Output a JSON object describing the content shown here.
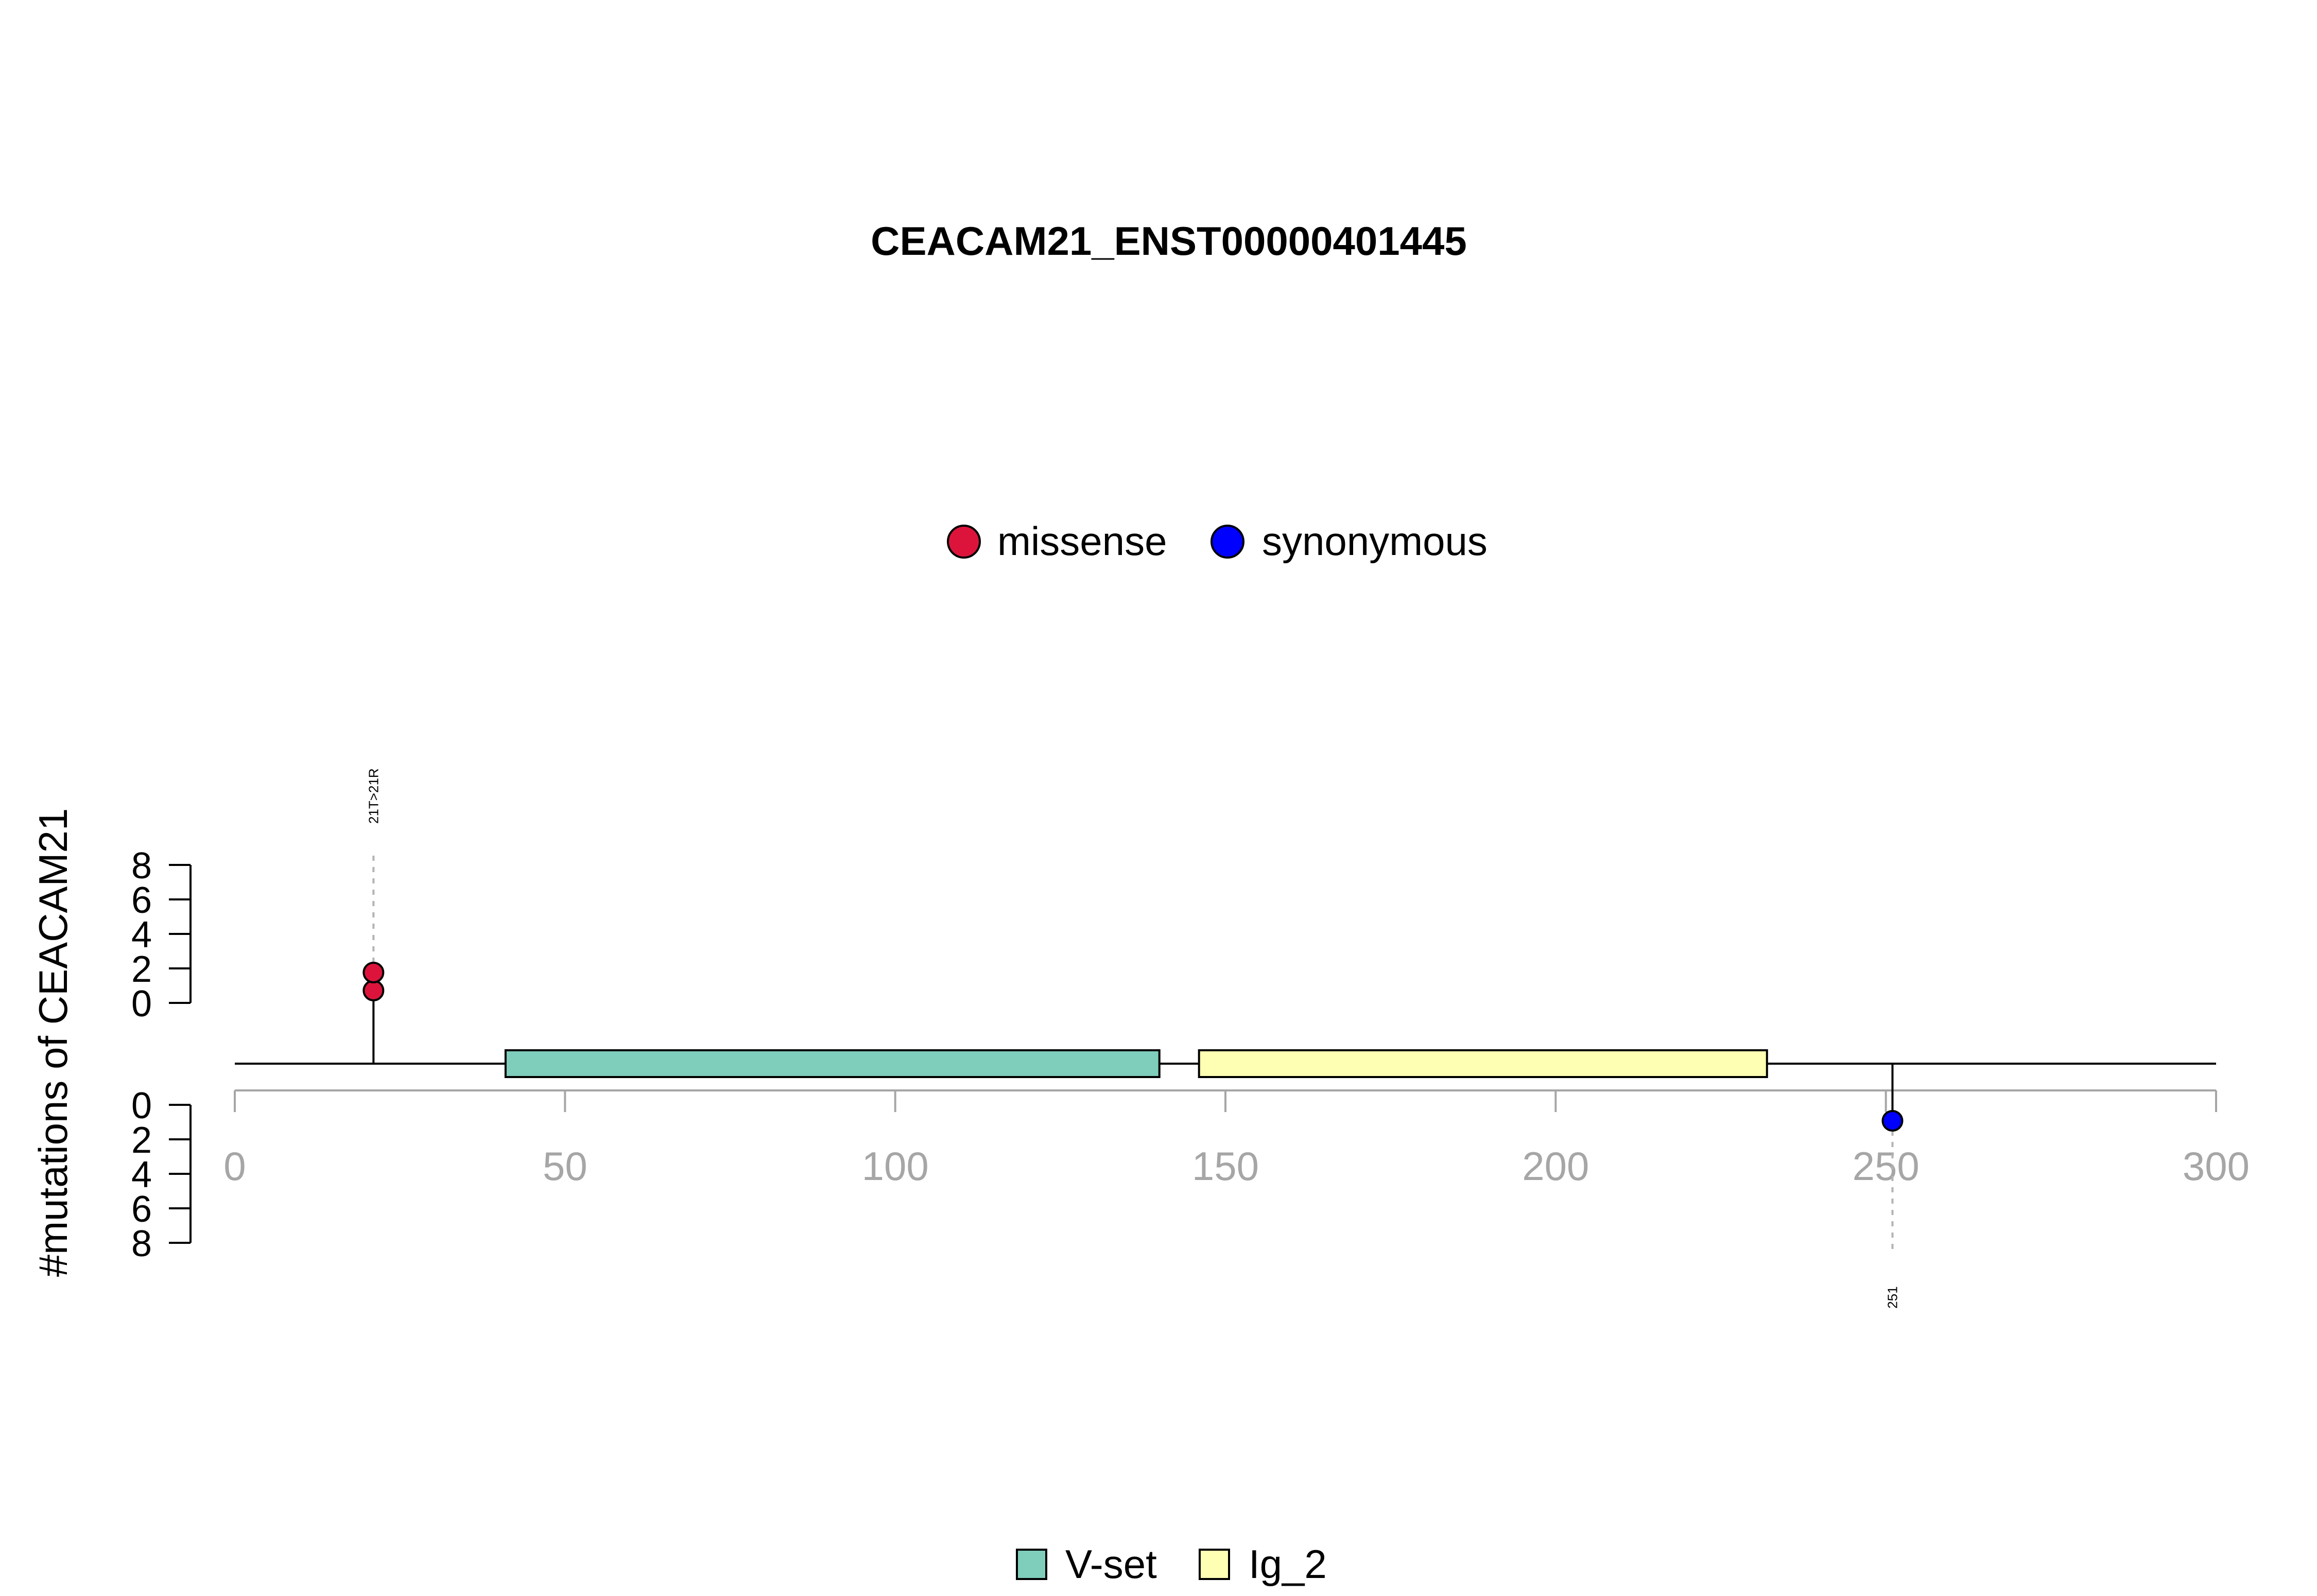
{
  "chart_data": {
    "type": "lollipop",
    "title": "CEACAM21_ENST00000401445",
    "ylabel": "#mutations of CEACAM21",
    "protein_length": 300,
    "xlim": [
      0,
      300
    ],
    "x_ticks": [
      "0",
      "50",
      "100",
      "150",
      "200",
      "250",
      "300"
    ],
    "x_tick_values": [
      0,
      50,
      100,
      150,
      200,
      250,
      300
    ],
    "upper_y_ticks": [
      "0",
      "2",
      "4",
      "6",
      "8"
    ],
    "lower_y_ticks": [
      "0",
      "2",
      "4",
      "6",
      "8"
    ],
    "y_tick_values": [
      0,
      2,
      4,
      6,
      8
    ],
    "ylim": [
      0,
      8
    ],
    "mutation_legend": [
      {
        "label": "missense",
        "color": "#DC143C"
      },
      {
        "label": "synonymous",
        "color": "#0000FF"
      }
    ],
    "domain_legend": [
      {
        "label": "V-set",
        "color": "#7FCDBB"
      },
      {
        "label": "Ig_2",
        "color": "#FFFFB3"
      }
    ],
    "domains": [
      {
        "name": "V-set",
        "start": 41,
        "end": 140,
        "color": "#7FCDBB"
      },
      {
        "name": "Ig_2",
        "start": 146,
        "end": 232,
        "color": "#FFFFB3"
      }
    ],
    "mutations": [
      {
        "position": 21,
        "label": "21T>21R",
        "side": "top",
        "count": 2,
        "type": "missense",
        "color": "#DC143C"
      },
      {
        "position": 251,
        "label": "251",
        "side": "bottom",
        "count": 1,
        "type": "synonymous",
        "color": "#0000FF"
      }
    ]
  }
}
